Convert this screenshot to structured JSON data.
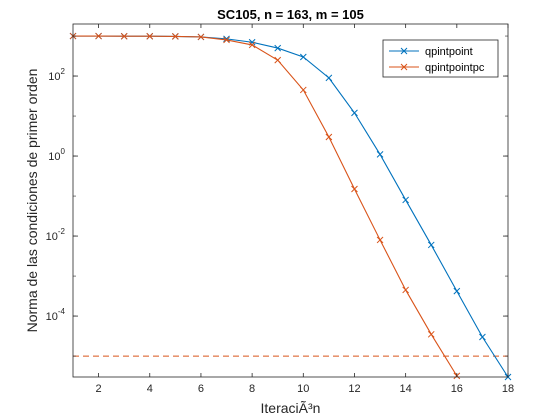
{
  "chart_data": {
    "type": "line",
    "title": "SC105, n = 163, m = 105",
    "xlabel": "IteraciÃ³n",
    "ylabel": "Norma de las condiciones de primer orden",
    "yscale": "log",
    "xlim": [
      1,
      18
    ],
    "ylim": [
      3e-06,
      2000
    ],
    "xticks": [
      "2",
      "4",
      "6",
      "8",
      "10",
      "12",
      "14",
      "16",
      "18"
    ],
    "xtick_values": [
      2,
      4,
      6,
      8,
      10,
      12,
      14,
      16,
      18
    ],
    "yticks": [
      {
        "base": "10",
        "exp": "2",
        "value": 100
      },
      {
        "base": "10",
        "exp": "0",
        "value": 1
      },
      {
        "base": "10",
        "exp": "-2",
        "value": 0.01
      },
      {
        "base": "10",
        "exp": "-4",
        "value": 0.0001
      }
    ],
    "legend_position": "top-right",
    "series": [
      {
        "name": "qpintpoint",
        "color": "#0072BD",
        "marker": "x",
        "x": [
          1,
          2,
          3,
          4,
          5,
          6,
          7,
          8,
          9,
          10,
          11,
          12,
          13,
          14,
          15,
          16,
          17,
          18
        ],
        "y": [
          1000,
          1000,
          990,
          990,
          980,
          950,
          850,
          700,
          500,
          300,
          90,
          12,
          1.1,
          0.08,
          0.006,
          0.00042,
          3e-05,
          3e-06
        ]
      },
      {
        "name": "qpintpointpc",
        "color": "#D95319",
        "marker": "x",
        "x": [
          1,
          2,
          3,
          4,
          5,
          6,
          7,
          8,
          9,
          10,
          11,
          12,
          13,
          14,
          15,
          16
        ],
        "y": [
          1000,
          1000,
          990,
          990,
          980,
          950,
          800,
          600,
          250,
          45,
          3,
          0.15,
          0.008,
          0.00045,
          3.5e-05,
          3.2e-06
        ]
      }
    ],
    "reference_line": {
      "y": 1e-05,
      "color": "#D95319",
      "style": "dashed"
    }
  }
}
